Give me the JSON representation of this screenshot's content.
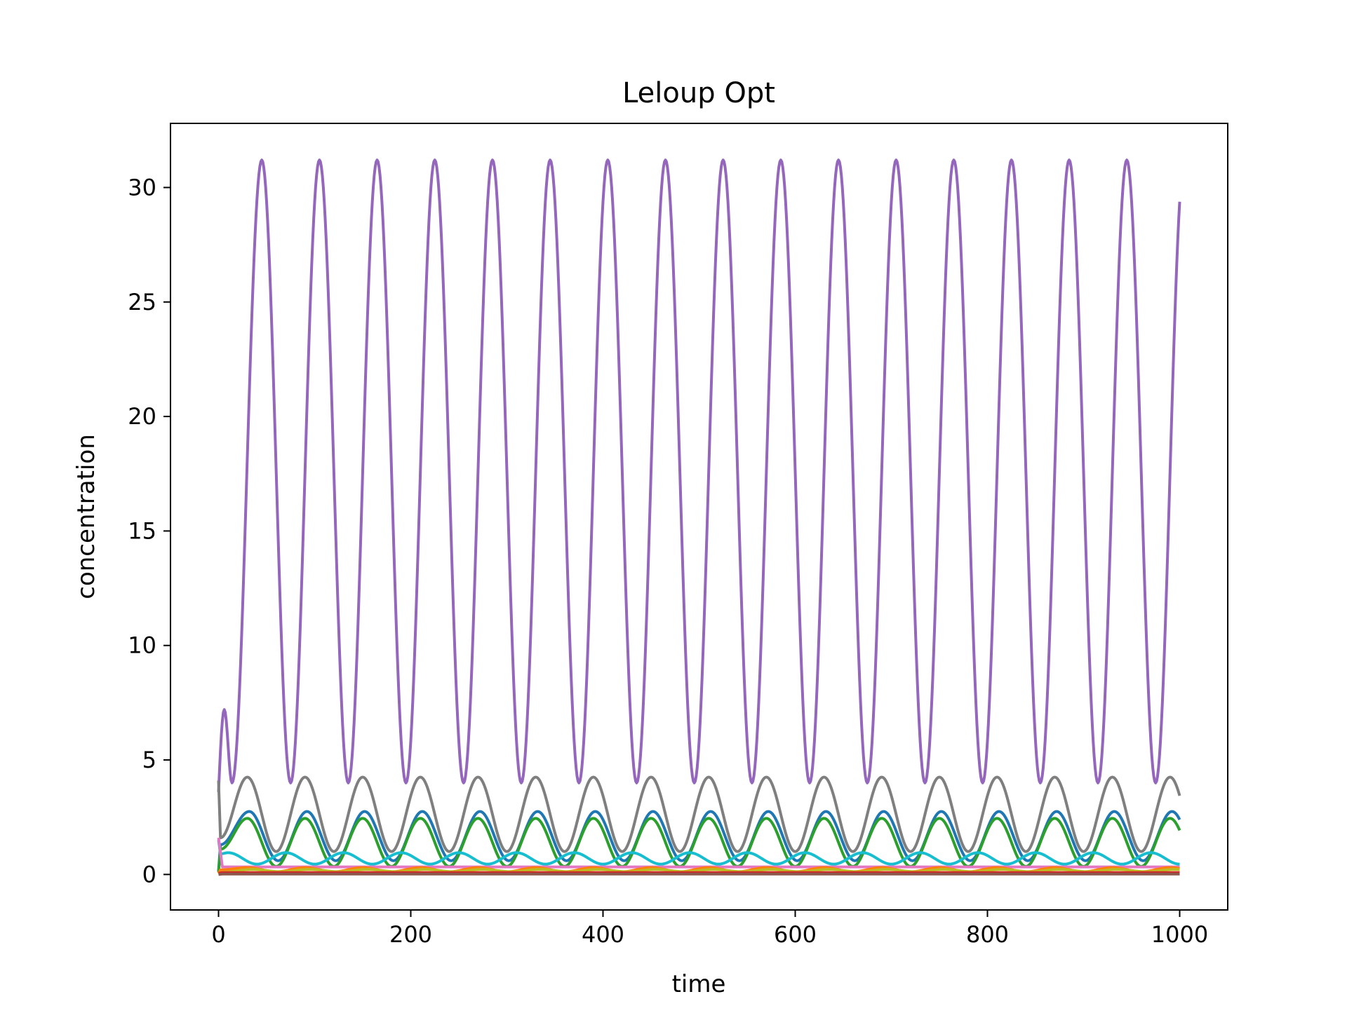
{
  "chart_data": {
    "type": "line",
    "title": "Leloup Opt",
    "xlabel": "time",
    "ylabel": "concentration",
    "xlim": [
      -50,
      1050
    ],
    "ylim": [
      -1.55,
      32.8
    ],
    "xticks": [
      0,
      200,
      400,
      600,
      800,
      1000
    ],
    "yticks": [
      0,
      5,
      10,
      15,
      20,
      25,
      30
    ],
    "grid": false,
    "legend": "none",
    "series": [
      {
        "color": "#9467bd",
        "kind": "osc",
        "start": 3.6,
        "p1": 7.2,
        "t1": 6,
        "v1": 4.0,
        "t_first": 45,
        "period": 60,
        "min": 4.0,
        "max": 31.2,
        "t_min_offset": 30,
        "end": 28.7
      },
      {
        "color": "#7f7f7f",
        "kind": "osc",
        "start": 4.1,
        "p1": null,
        "t1": null,
        "v1": 1.6,
        "t_first": 30,
        "period": 60,
        "min": 1.0,
        "max": 4.25,
        "t_min_offset": 28,
        "end": 3.25
      },
      {
        "color": "#1f77b4",
        "kind": "osc",
        "start": 0.15,
        "p1": null,
        "t1": null,
        "v1": 1.3,
        "t_first": 32,
        "period": 60,
        "min": 0.6,
        "max": 2.75,
        "t_min_offset": 28,
        "end": 2.05
      },
      {
        "color": "#2ca02c",
        "kind": "osc",
        "start": 0.1,
        "p1": null,
        "t1": null,
        "v1": 1.1,
        "t_first": 30,
        "period": 60,
        "min": 0.35,
        "max": 2.45,
        "t_min_offset": 28,
        "end": 1.6
      },
      {
        "color": "#17becf",
        "kind": "osc",
        "start": 1.5,
        "p1": null,
        "t1": null,
        "v1": 0.9,
        "t_first": 10,
        "period": 60,
        "min": 0.45,
        "max": 0.95,
        "t_min_offset": 30,
        "end": 0.9
      },
      {
        "color": "#e377c2",
        "kind": "flat",
        "start": 1.6,
        "value": 0.33
      },
      {
        "color": "#ff7f0e",
        "kind": "osc",
        "start": 0.05,
        "p1": null,
        "t1": null,
        "v1": 0.2,
        "t_first": 30,
        "period": 60,
        "min": 0.12,
        "max": 0.3,
        "t_min_offset": 28,
        "end": 0.2
      },
      {
        "color": "#bcbd22",
        "kind": "osc",
        "start": 0.0,
        "p1": null,
        "t1": null,
        "v1": 0.1,
        "t_first": 35,
        "period": 60,
        "min": 0.12,
        "max": 0.22,
        "t_min_offset": 28,
        "end": 0.18
      },
      {
        "color": "#d62728",
        "kind": "flat",
        "start": 0.05,
        "value": 0.08
      },
      {
        "color": "#8c564b",
        "kind": "flat",
        "start": 0.0,
        "value": 0.02
      }
    ]
  }
}
